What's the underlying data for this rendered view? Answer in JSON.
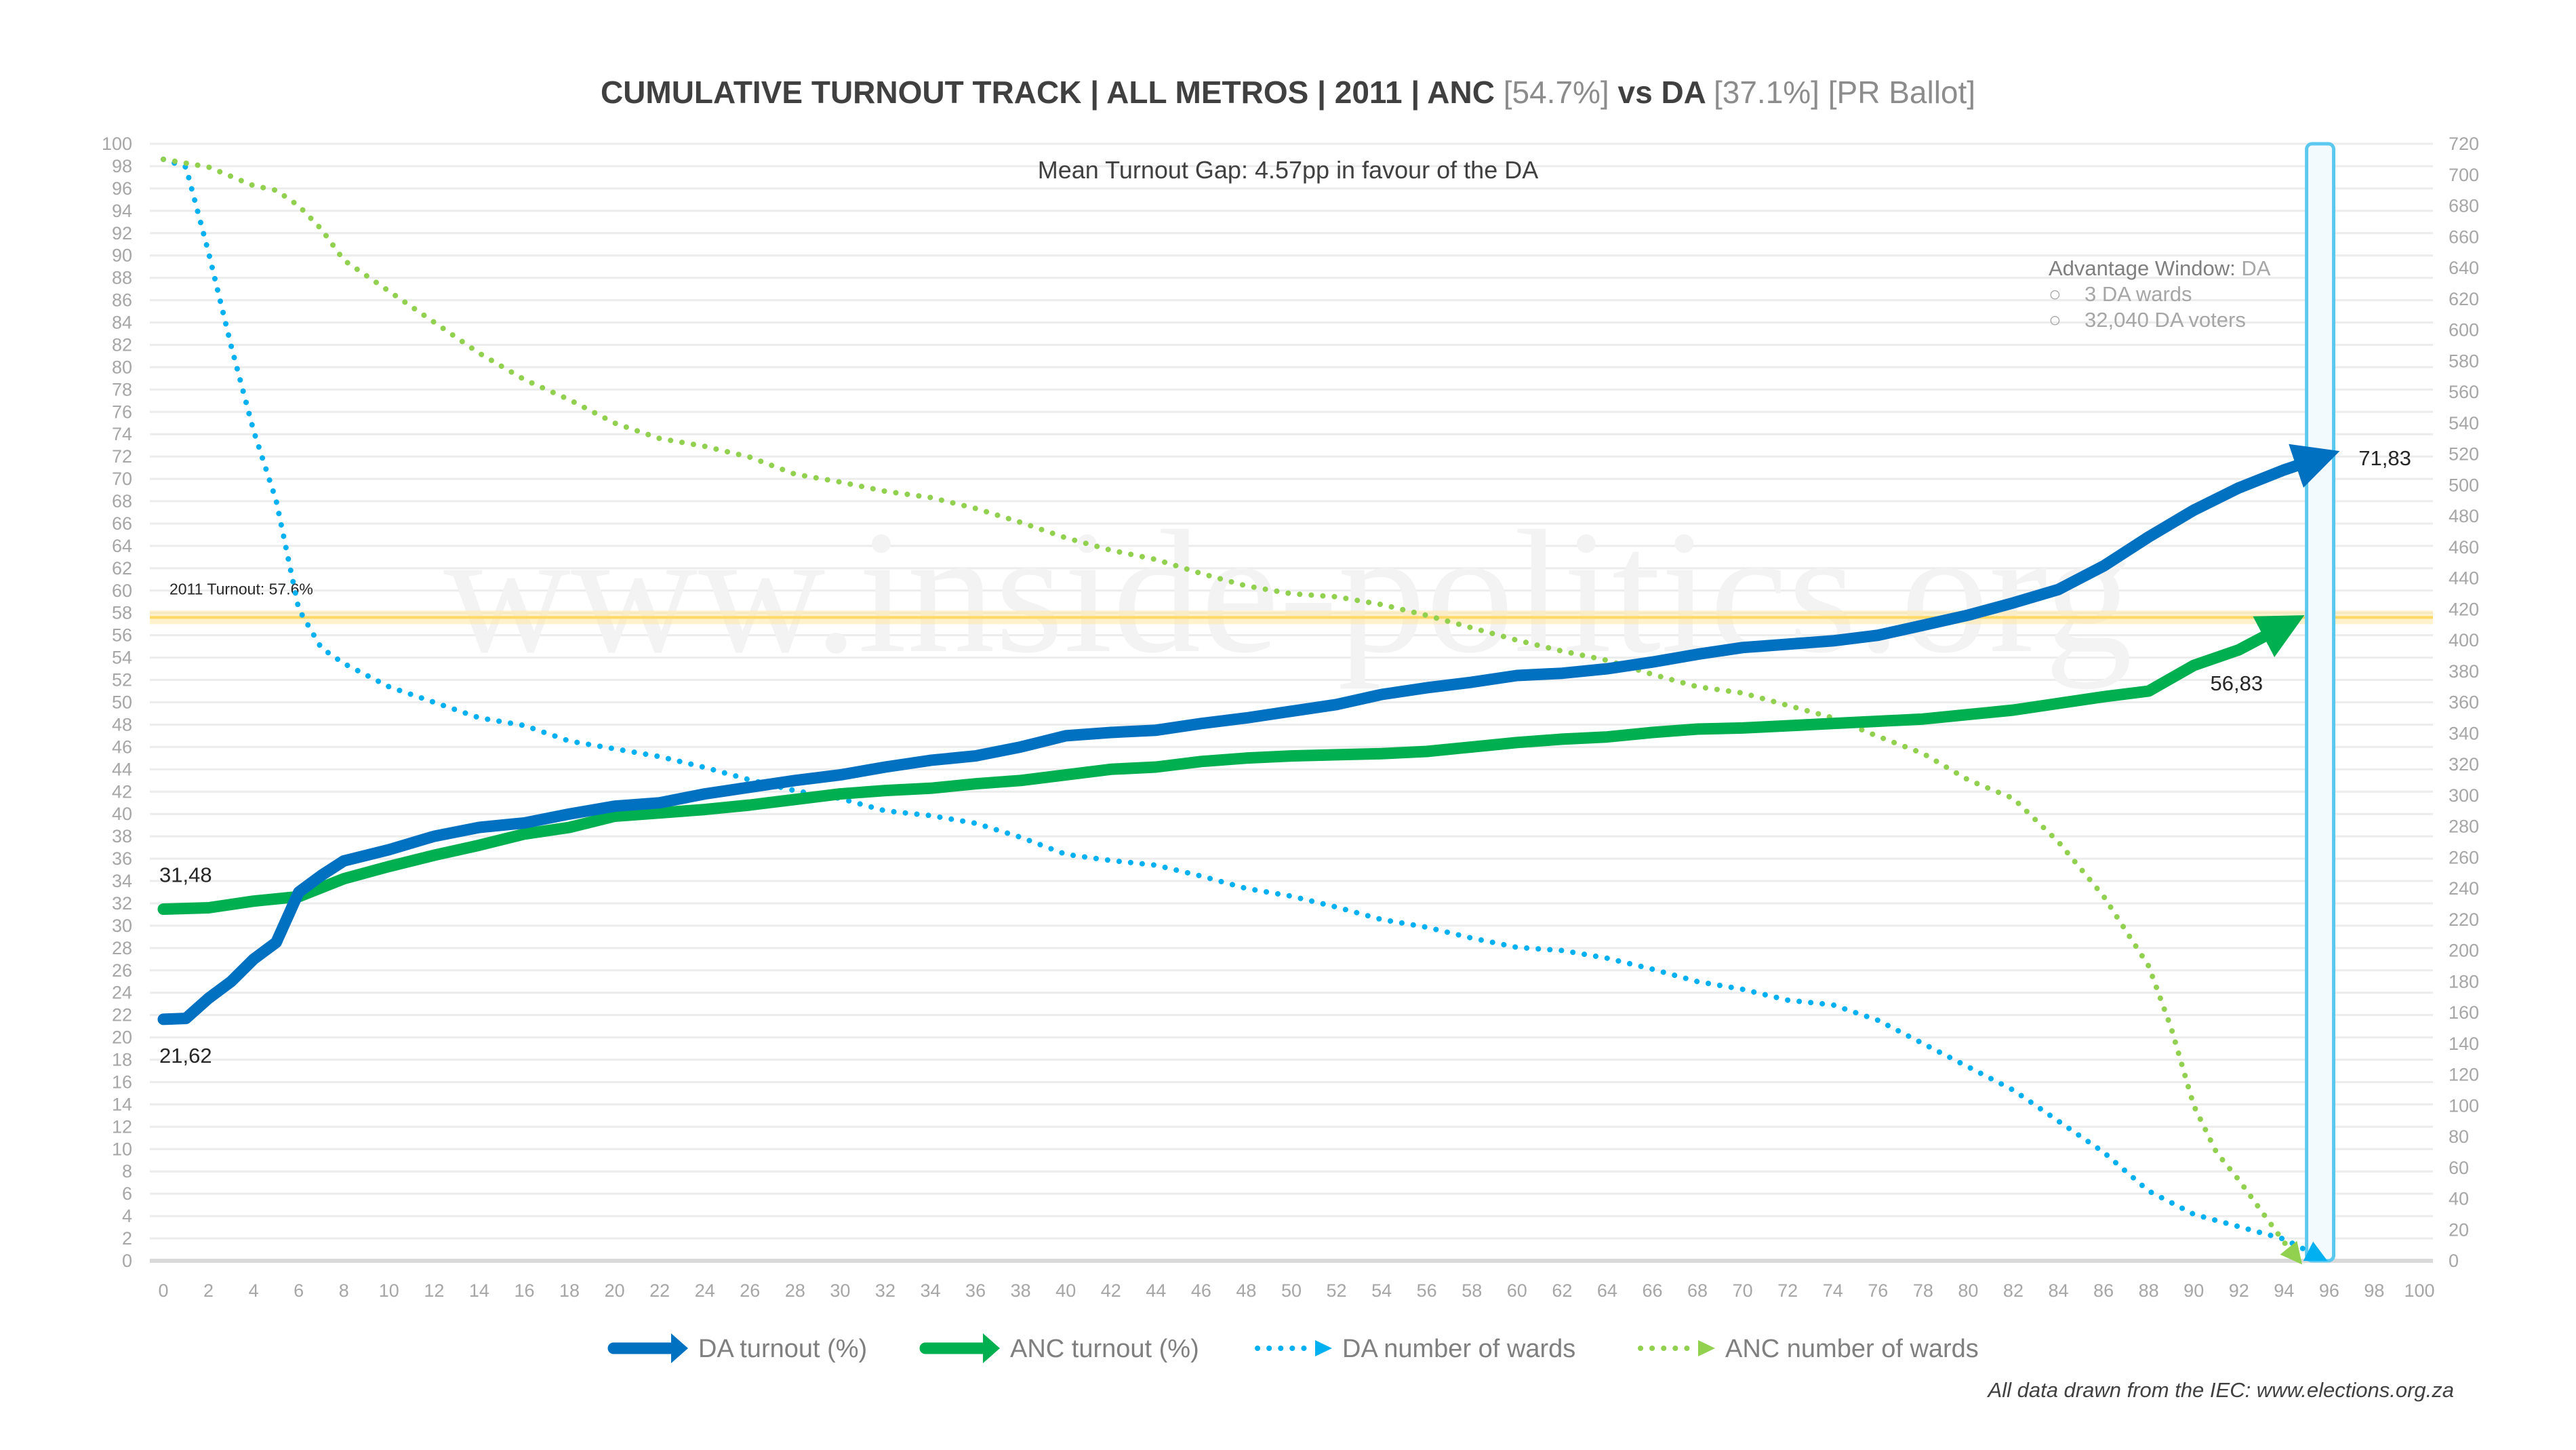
{
  "chart_data": {
    "type": "line",
    "title_parts": {
      "main": "CUMULATIVE TURNOUT TRACK | ALL METROS | 2011 | ANC ",
      "anc_pct": "[54.7%]",
      "vs": " vs DA ",
      "da_pct": "[37.1%]",
      "ballot": " [PR Ballot]"
    },
    "subtitle": "Mean Turnout Gap: 4.57pp in favour of the DA",
    "watermark": "www.inside-politics.org",
    "footer": "All data drawn from the IEC: www.elections.org.za",
    "xlim": [
      0,
      100
    ],
    "xticks_step": 2,
    "ylim_left": [
      0,
      100
    ],
    "yticks_left_step": 2,
    "ylim_right": [
      0,
      720
    ],
    "yticks_right_step": 20,
    "grid": true,
    "legend_position": "bottom",
    "reference_line": {
      "label": "2011 Turnout: 57.6%",
      "value": 57.6,
      "color": "#FFE699"
    },
    "advantage_window": {
      "x_range": [
        95,
        96.2
      ],
      "title": "Advantage Window: ",
      "party": "DA",
      "bullets": [
        "3 DA wards",
        "32,040 DA voters"
      ],
      "color": "#5BC8F0"
    },
    "series": [
      {
        "name": "DA turnout (%)",
        "axis": "left",
        "color": "#0070C0",
        "style": "solid",
        "start_label": "21,62",
        "end_label": "71,83",
        "x": [
          0,
          1,
          2,
          3,
          4,
          5,
          6,
          7,
          8,
          10,
          12,
          14,
          16,
          18,
          20,
          22,
          24,
          26,
          28,
          30,
          32,
          34,
          36,
          38,
          40,
          42,
          44,
          46,
          48,
          50,
          52,
          54,
          56,
          58,
          60,
          62,
          64,
          66,
          68,
          70,
          72,
          74,
          76,
          78,
          80,
          82,
          84,
          86,
          88,
          90,
          92,
          94,
          95.5
        ],
        "y": [
          21.62,
          21.7,
          23.5,
          25,
          27,
          28.5,
          33,
          34.5,
          35.8,
          36.8,
          38,
          38.8,
          39.2,
          40,
          40.7,
          41,
          41.8,
          42.4,
          43,
          43.5,
          44.2,
          44.8,
          45.2,
          46,
          47,
          47.3,
          47.5,
          48.1,
          48.6,
          49.2,
          49.8,
          50.7,
          51.3,
          51.8,
          52.4,
          52.6,
          53,
          53.6,
          54.3,
          54.9,
          55.2,
          55.5,
          56,
          56.9,
          57.8,
          58.9,
          60.1,
          62.2,
          64.8,
          67.2,
          69.2,
          70.8,
          71.83
        ]
      },
      {
        "name": "ANC turnout (%)",
        "axis": "left",
        "color": "#00B050",
        "style": "solid",
        "start_label": "31,48",
        "end_label": "56,83",
        "x": [
          0,
          2,
          4,
          6,
          8,
          10,
          12,
          14,
          16,
          18,
          20,
          22,
          24,
          26,
          28,
          30,
          32,
          34,
          36,
          38,
          40,
          42,
          44,
          46,
          48,
          50,
          52,
          54,
          56,
          58,
          60,
          62,
          64,
          66,
          68,
          70,
          72,
          74,
          76,
          78,
          80,
          82,
          84,
          86,
          88,
          90,
          92,
          94
        ],
        "y": [
          31.48,
          31.6,
          32.2,
          32.6,
          34.2,
          35.3,
          36.3,
          37.2,
          38.2,
          38.8,
          39.8,
          40.1,
          40.4,
          40.8,
          41.3,
          41.8,
          42.1,
          42.3,
          42.7,
          43,
          43.5,
          44,
          44.2,
          44.7,
          45,
          45.2,
          45.3,
          45.4,
          45.6,
          46,
          46.4,
          46.7,
          46.9,
          47.3,
          47.6,
          47.7,
          47.9,
          48.1,
          48.3,
          48.5,
          48.9,
          49.3,
          49.9,
          50.5,
          51,
          53.3,
          54.7,
          56.83
        ]
      },
      {
        "name": "DA number of wards",
        "axis": "right",
        "color": "#00B0F0",
        "style": "dotted",
        "x": [
          0,
          1,
          2,
          3,
          4,
          5,
          6,
          7,
          8,
          10,
          12,
          14,
          16,
          18,
          20,
          22,
          24,
          26,
          28,
          30,
          32,
          34,
          36,
          38,
          40,
          42,
          44,
          46,
          48,
          50,
          52,
          54,
          56,
          58,
          60,
          62,
          64,
          66,
          68,
          70,
          72,
          74,
          76,
          78,
          80,
          82,
          84,
          86,
          88,
          90,
          92,
          94,
          95.5
        ],
        "y": [
          710,
          705,
          650,
          590,
          535,
          490,
          420,
          395,
          385,
          370,
          360,
          350,
          345,
          335,
          330,
          325,
          318,
          310,
          303,
          298,
          290,
          287,
          282,
          273,
          262,
          258,
          255,
          248,
          240,
          235,
          228,
          220,
          215,
          208,
          202,
          200,
          195,
          188,
          180,
          175,
          168,
          165,
          155,
          140,
          125,
          110,
          90,
          70,
          45,
          30,
          22,
          14,
          3
        ]
      },
      {
        "name": "ANC number of wards",
        "axis": "right",
        "color": "#92D050",
        "style": "dotted",
        "x": [
          0,
          2,
          4,
          5,
          6,
          7,
          8,
          10,
          12,
          14,
          16,
          18,
          20,
          22,
          24,
          26,
          28,
          30,
          32,
          34,
          36,
          38,
          40,
          42,
          44,
          46,
          48,
          50,
          52,
          54,
          56,
          58,
          60,
          62,
          64,
          66,
          68,
          70,
          72,
          74,
          76,
          78,
          80,
          82,
          84,
          86,
          88,
          89,
          90,
          91,
          92,
          93,
          94,
          94.5
        ],
        "y": [
          710,
          705,
          693,
          690,
          680,
          665,
          645,
          625,
          605,
          585,
          568,
          555,
          540,
          530,
          525,
          518,
          507,
          502,
          496,
          492,
          485,
          476,
          466,
          458,
          452,
          443,
          435,
          430,
          428,
          423,
          416,
          408,
          400,
          393,
          387,
          378,
          370,
          366,
          358,
          350,
          338,
          327,
          310,
          298,
          270,
          235,
          190,
          150,
          100,
          70,
          52,
          32,
          12,
          3
        ]
      }
    ]
  }
}
